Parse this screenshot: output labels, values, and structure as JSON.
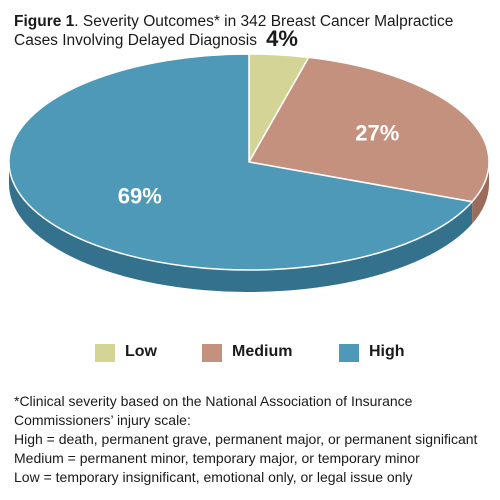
{
  "figure": {
    "label": "Figure 1",
    "title": ". Severity Outcomes* in 342 Breast Cancer Malpractice Cases Involving Delayed Diagnosis"
  },
  "chart_data": {
    "type": "pie",
    "title": "Figure 1. Severity Outcomes* in 342 Breast Cancer Malpractice Cases Involving Delayed Diagnosis",
    "categories": [
      "Low",
      "Medium",
      "High"
    ],
    "values": [
      4,
      27,
      69
    ],
    "labels": [
      "4%",
      "27%",
      "69%"
    ],
    "colors": [
      "#d3d496",
      "#c4917f",
      "#4e99b8"
    ],
    "side_colors": [
      "#a8a96e",
      "#9c6c5b",
      "#33718c"
    ],
    "label_colors": [
      "#1a1a1a",
      "#ffffff",
      "#ffffff"
    ],
    "style": "3d-tilted",
    "legend": "bottom"
  },
  "legend": {
    "items": [
      {
        "label": "Low",
        "color": "#d3d496"
      },
      {
        "label": "Medium",
        "color": "#c4917f"
      },
      {
        "label": "High",
        "color": "#4e99b8"
      }
    ]
  },
  "footnote": {
    "lines": [
      "*Clinical severity based on the National Association of Insurance",
      "Commissioners’ injury scale:",
      "High = death, permanent grave, permanent major, or permanent significant",
      "Medium = permanent minor, temporary major, or temporary minor",
      "Low = temporary insignificant, emotional only, or legal issue only"
    ]
  }
}
